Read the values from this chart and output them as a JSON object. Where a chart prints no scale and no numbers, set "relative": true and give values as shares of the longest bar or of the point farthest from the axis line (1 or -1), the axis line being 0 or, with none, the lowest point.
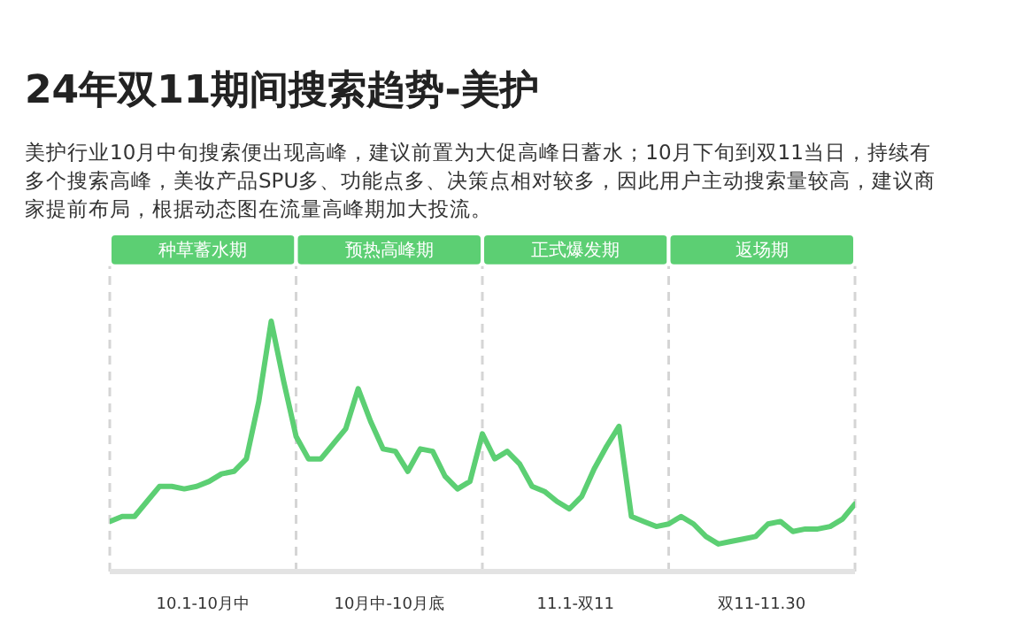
{
  "chart_data": {
    "type": "line",
    "title": "24年双11期间搜索趋势-美护",
    "subtitle": "美护行业10月中旬搜索便出现高峰，建议前置为大促高峰日蓄水；10月下旬到双11当日，持续有多个搜索高峰，美妆产品SPU多、功能点多、决策点相对较多，因此用户主动搜索量较高，建议商家提前布局，根据动态图在流量高峰期加大投流。",
    "relative": true,
    "categories": [
      null,
      null,
      null,
      null,
      null,
      null,
      null,
      null,
      null,
      null,
      null,
      null,
      null,
      null,
      null,
      null,
      null,
      null,
      null,
      null,
      null,
      null,
      null,
      null,
      null,
      null,
      null,
      null,
      null,
      null,
      null,
      null,
      null,
      null,
      null,
      null,
      null,
      null,
      null,
      null,
      null,
      null,
      null,
      null,
      null,
      null,
      null,
      null,
      null,
      null,
      null,
      null,
      null,
      null,
      null,
      null,
      null,
      null,
      null,
      null,
      null
    ],
    "series": [
      {
        "color": "#5ccf73",
        "values": [
          0.2,
          0.22,
          0.22,
          0.28,
          0.34,
          0.34,
          0.33,
          0.34,
          0.36,
          0.39,
          0.4,
          0.45,
          0.68,
          1,
          0.76,
          0.54,
          0.45,
          0.45,
          0.51,
          0.57,
          0.73,
          0.6,
          0.49,
          0.48,
          0.4,
          0.49,
          0.48,
          0.38,
          0.33,
          0.36,
          0.55,
          0.45,
          0.48,
          0.43,
          0.34,
          0.32,
          0.28,
          0.25,
          0.3,
          0.41,
          0.5,
          0.58,
          0.22,
          0.2,
          0.18,
          0.19,
          0.22,
          0.19,
          0.14,
          0.11,
          0.12,
          0.13,
          0.14,
          0.19,
          0.2,
          0.16,
          0.17,
          0.17,
          0.18,
          0.21,
          0.27
        ]
      }
    ],
    "marker": "none",
    "annotations": [
      "种草蓄水期",
      "预热高峰期",
      "正式爆发期",
      "返场期",
      "10.1-10月中",
      "10月中-10月底",
      "11.1-双11",
      "双11-11.30"
    ],
    "grid": "x"
  }
}
